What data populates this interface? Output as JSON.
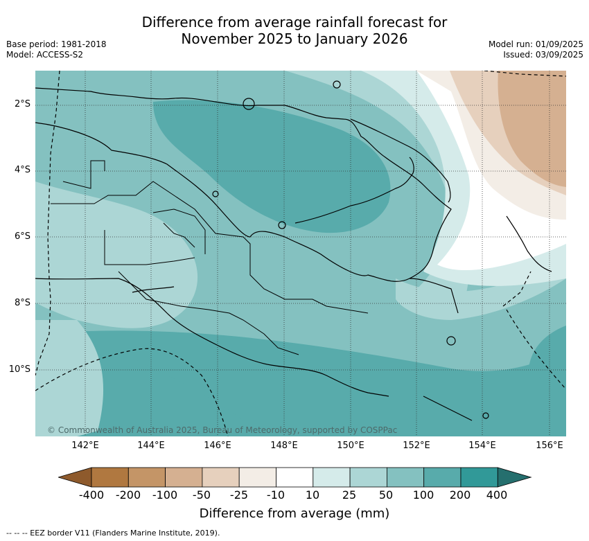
{
  "title_line1": "Difference from average rainfall forecast for",
  "title_line2": "November 2025 to January 2026",
  "base_period": "Base period: 1981-2018",
  "model": "Model: ACCESS-S2",
  "model_run": "Model run: 01/09/2025",
  "issued": "Issued: 03/09/2025",
  "lat_labels": [
    "2°S",
    "4°S",
    "6°S",
    "8°S",
    "10°S"
  ],
  "lon_labels": [
    "142°E",
    "144°E",
    "146°E",
    "148°E",
    "150°E",
    "152°E",
    "154°E",
    "156°E"
  ],
  "copyright": "© Commonwealth of Australia 2025, Bureau of Meteorology, supported by COSPPac",
  "colorbar": {
    "labels": [
      "-400",
      "-200",
      "-100",
      "-50",
      "-25",
      "-10",
      "10",
      "25",
      "50",
      "100",
      "200",
      "400"
    ],
    "colors": [
      "#8e5a2c",
      "#b07840",
      "#c49567",
      "#d5b091",
      "#e6d0bd",
      "#f3ede6",
      "#ffffff",
      "#d5ebea",
      "#acd6d5",
      "#84c1c0",
      "#58abab",
      "#319998",
      "#256f6e"
    ],
    "title": "Difference from average (mm)"
  },
  "footer": "--  --  -- EEZ border V11 (Flanders Marine Institute, 2019)."
}
